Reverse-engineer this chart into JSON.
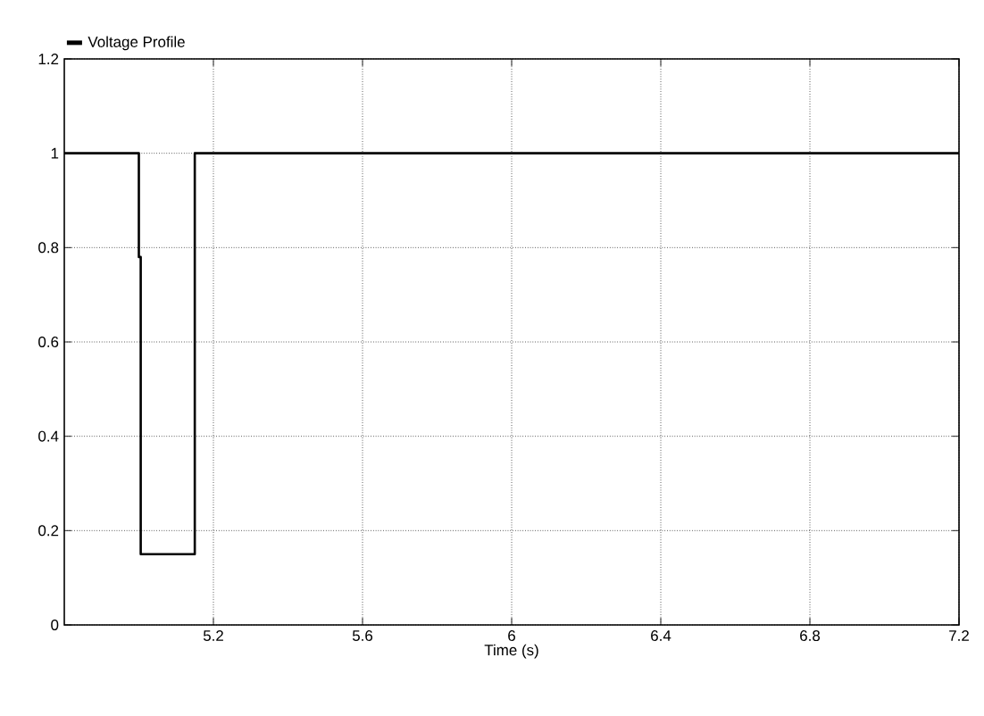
{
  "chart_data": {
    "type": "line",
    "xlabel": "Time (s)",
    "legend": "top left",
    "series": [
      {
        "name": "Voltage Profile",
        "color": "#000000",
        "x": [
          4.8,
          5.0,
          5.0,
          5.005,
          5.005,
          5.15,
          5.15,
          7.2
        ],
        "values": [
          1,
          1,
          0.78,
          0.78,
          0.15,
          0.15,
          1,
          1
        ]
      }
    ],
    "xlim": [
      4.8,
      7.2
    ],
    "xticks": [
      5.2,
      5.6,
      6,
      6.4,
      6.8,
      7.2
    ],
    "ylim": [
      0,
      1.2
    ],
    "yticks": [
      0,
      0.2,
      0.4,
      0.6,
      0.8,
      1,
      1.2
    ],
    "grid": true,
    "marker": "none",
    "line_style": "solid"
  }
}
